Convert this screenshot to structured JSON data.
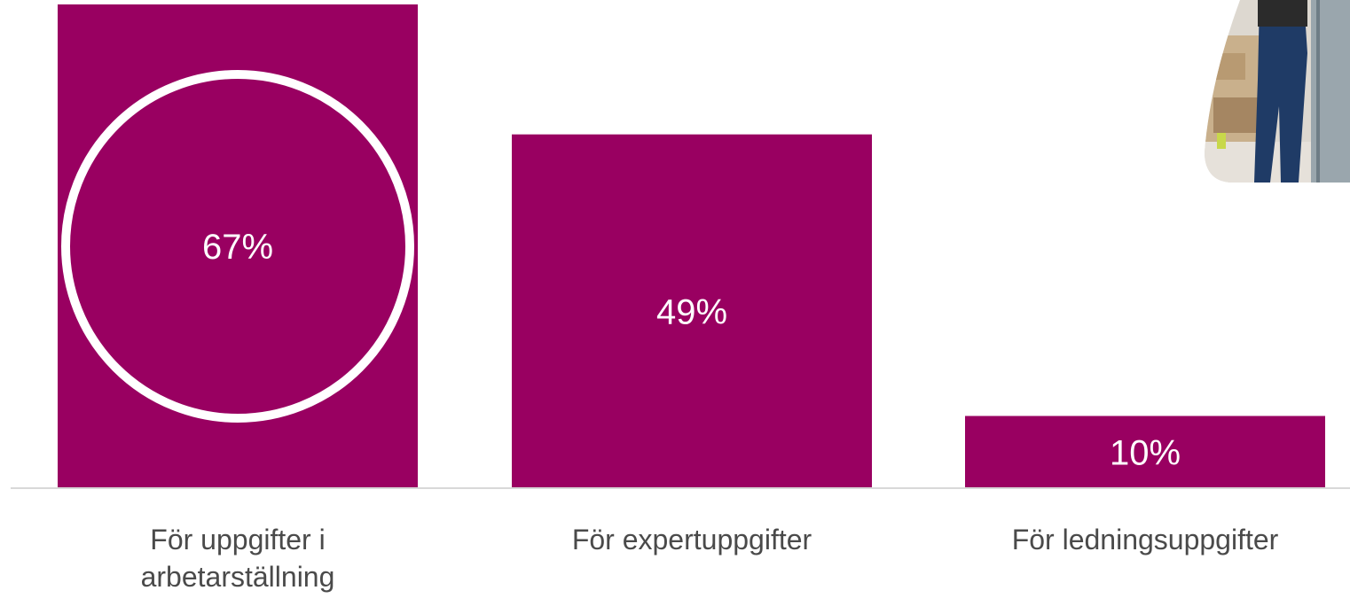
{
  "chart_data": {
    "type": "bar",
    "categories": [
      "För uppgifter i arbetarställning",
      "För expertuppgifter",
      "För ledningsuppgifter"
    ],
    "values": [
      67,
      49,
      10
    ],
    "value_labels": [
      "67%",
      "49%",
      "10%"
    ],
    "unit": "%",
    "ylim": [
      0,
      67
    ],
    "highlighted_category_index": 0,
    "grid": false,
    "legend": "none",
    "bar_color": "#990061",
    "label_color": "#ffffff",
    "category_label_color": "#4a4a4a",
    "axis_color": "#d8d8d8"
  },
  "decor": {
    "photo": "warehouse-worker-photo"
  }
}
